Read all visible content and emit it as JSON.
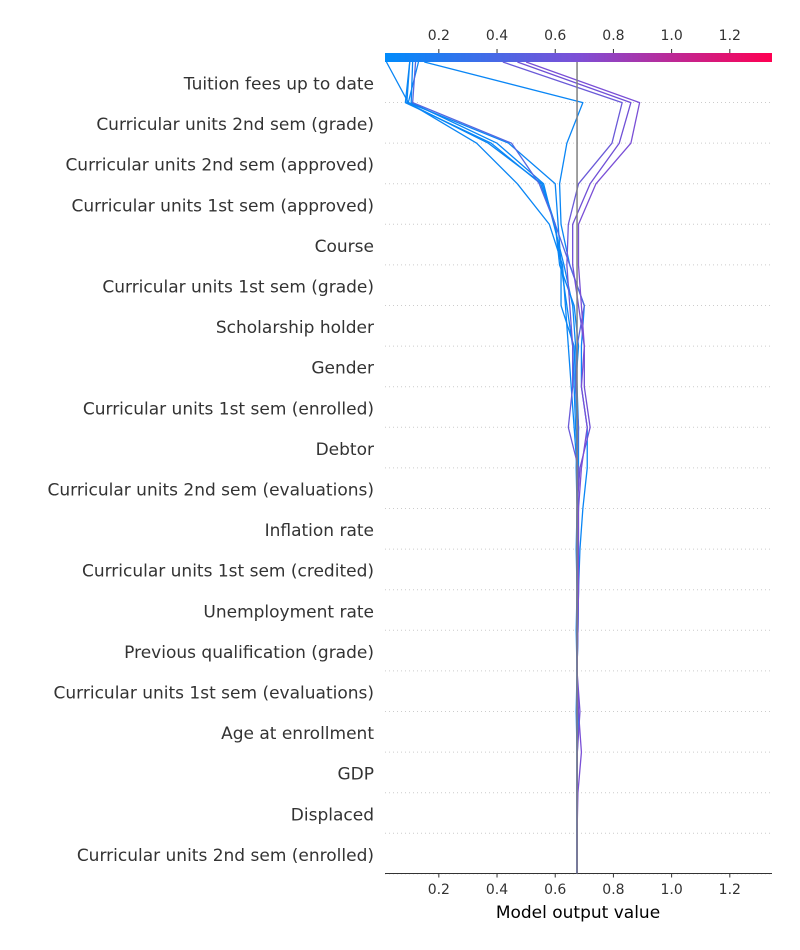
{
  "chart_data": {
    "type": "line",
    "plot_kind": "shap-decision-plot",
    "xlabel": "Model output value",
    "base_value": 0.675,
    "xlim": [
      0.015,
      1.345
    ],
    "xticks": [
      0.2,
      0.4,
      0.6,
      0.8,
      1.0,
      1.2
    ],
    "xtick_labels": [
      "0.2",
      "0.4",
      "0.6",
      "0.8",
      "1.0",
      "1.2"
    ],
    "colorbar": {
      "position": "top",
      "range": [
        0.015,
        1.345
      ],
      "stops": [
        "#008bfb",
        "#7d4fd6",
        "#ff0052"
      ]
    },
    "grid": "dotted horizontal per feature",
    "features": [
      "Tuition fees up to date",
      "Curricular units 2nd sem (grade)",
      "Curricular units 2nd sem (approved)",
      "Curricular units 1st sem (approved)",
      "Course",
      "Curricular units 1st sem (grade)",
      "Scholarship holder",
      "Gender",
      "Curricular units 1st sem (enrolled)",
      "Debtor",
      "Curricular units 2nd sem (evaluations)",
      "Inflation rate",
      "Curricular units 1st sem (credited)",
      "Unemployment rate",
      "Previous qualification (grade)",
      "Curricular units 1st sem (evaluations)",
      "Age at enrollment",
      "GDP",
      "Displaced",
      "Curricular units 2nd sem (enrolled)"
    ],
    "series_note": "Each series lists cumulative model output from the top (final prediction) down to the bottom (base value).",
    "series": [
      {
        "color": "#0a86f5",
        "values": [
          0.02,
          0.095,
          0.33,
          0.47,
          0.58,
          0.625,
          0.635,
          0.645,
          0.655,
          0.665,
          0.675,
          0.68,
          0.675,
          0.68,
          0.678,
          0.675,
          0.678,
          0.676,
          0.675,
          0.675,
          0.675
        ]
      },
      {
        "color": "#0a86f5",
        "values": [
          0.1,
          0.085,
          0.38,
          0.55,
          0.6,
          0.615,
          0.665,
          0.68,
          0.67,
          0.68,
          0.68,
          0.675,
          0.672,
          0.675,
          0.672,
          0.675,
          0.672,
          0.675,
          0.675,
          0.675,
          0.675
        ]
      },
      {
        "color": "#0a86f5",
        "values": [
          0.1,
          0.09,
          0.37,
          0.555,
          0.6,
          0.62,
          0.64,
          0.66,
          0.665,
          0.67,
          0.68,
          0.676,
          0.674,
          0.675,
          0.675,
          0.675,
          0.675,
          0.675,
          0.675,
          0.675,
          0.675
        ]
      },
      {
        "color": "#0a86f5",
        "values": [
          0.11,
          0.105,
          0.4,
          0.56,
          0.595,
          0.63,
          0.66,
          0.67,
          0.675,
          0.68,
          0.675,
          0.675,
          0.675,
          0.675,
          0.675,
          0.675,
          0.675,
          0.675,
          0.675,
          0.675,
          0.675
        ]
      },
      {
        "color": "#0a86f5",
        "values": [
          0.13,
          0.095,
          0.44,
          0.6,
          0.61,
          0.62,
          0.62,
          0.665,
          0.67,
          0.675,
          0.672,
          0.675,
          0.674,
          0.675,
          0.675,
          0.675,
          0.675,
          0.675,
          0.675,
          0.675,
          0.675
        ]
      },
      {
        "color": "#0a86f5",
        "values": [
          0.15,
          0.695,
          0.64,
          0.615,
          0.62,
          0.65,
          0.7,
          0.69,
          0.69,
          0.71,
          0.71,
          0.695,
          0.685,
          0.68,
          0.678,
          0.675,
          0.678,
          0.676,
          0.675,
          0.675,
          0.675
        ]
      },
      {
        "color": "#5568e0",
        "values": [
          0.12,
          0.11,
          0.45,
          0.545,
          0.6,
          0.65,
          0.7,
          0.675,
          0.67,
          0.68,
          0.675,
          0.675,
          0.675,
          0.675,
          0.675,
          0.675,
          0.675,
          0.675,
          0.675,
          0.675,
          0.675
        ]
      },
      {
        "color": "#6a5ad8",
        "values": [
          0.42,
          0.83,
          0.795,
          0.68,
          0.645,
          0.64,
          0.65,
          0.66,
          0.66,
          0.645,
          0.68,
          0.675,
          0.675,
          0.675,
          0.675,
          0.675,
          0.675,
          0.675,
          0.675,
          0.675,
          0.675
        ]
      },
      {
        "color": "#7050d6",
        "values": [
          0.47,
          0.86,
          0.82,
          0.72,
          0.66,
          0.66,
          0.68,
          0.7,
          0.7,
          0.72,
          0.685,
          0.675,
          0.68,
          0.675,
          0.675,
          0.675,
          0.685,
          0.676,
          0.675,
          0.675,
          0.675
        ]
      },
      {
        "color": "#7a4fd6",
        "values": [
          0.5,
          0.89,
          0.86,
          0.74,
          0.68,
          0.68,
          0.69,
          0.7,
          0.69,
          0.71,
          0.69,
          0.68,
          0.68,
          0.68,
          0.678,
          0.675,
          0.68,
          0.69,
          0.678,
          0.675,
          0.675
        ]
      }
    ]
  }
}
